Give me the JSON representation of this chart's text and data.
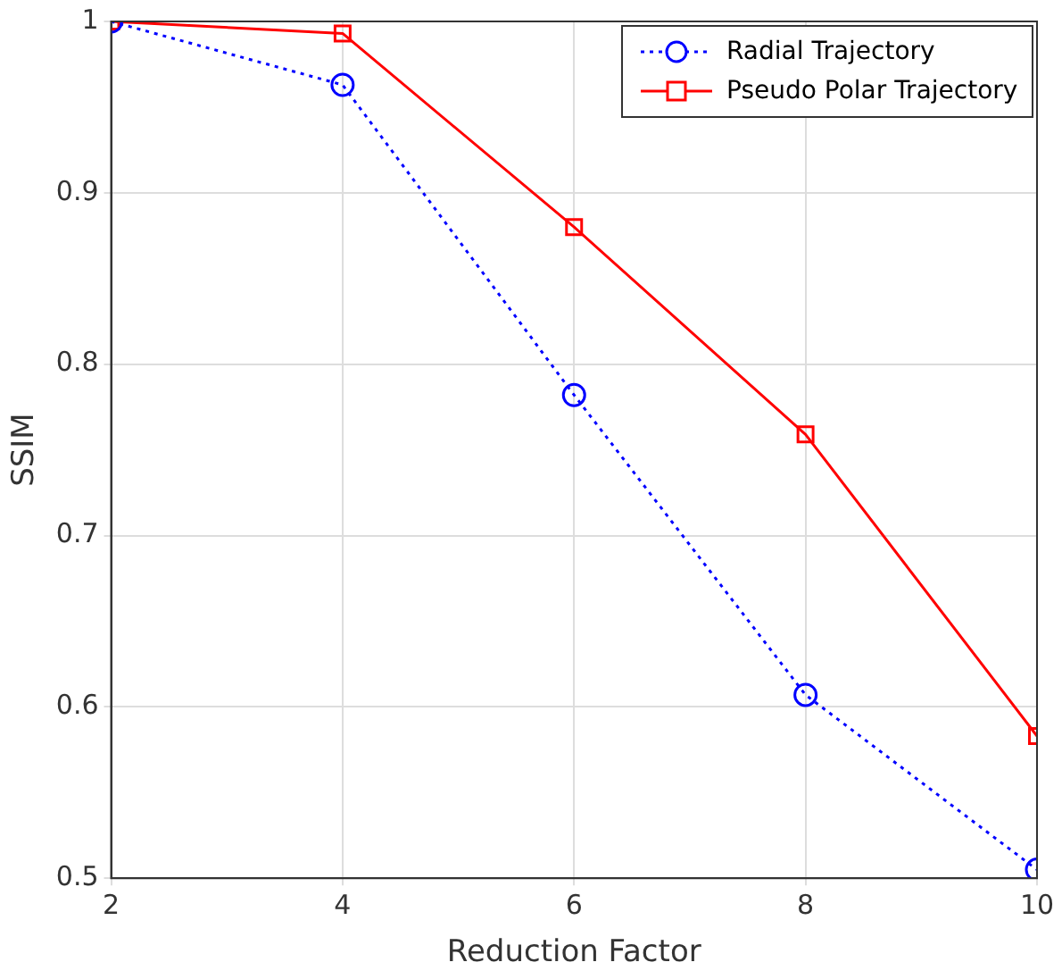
{
  "chart_data": {
    "type": "line",
    "xlabel": "Reduction Factor",
    "ylabel": "SSIM",
    "x": [
      2,
      4,
      6,
      8,
      10
    ],
    "series": [
      {
        "name": "Radial Trajectory",
        "color": "#0000ff",
        "values": [
          1.0,
          0.963,
          0.782,
          0.607,
          0.505
        ],
        "marker": "circle",
        "line_style": "dotted"
      },
      {
        "name": "Pseudo Polar Trajectory",
        "color": "#ff0000",
        "values": [
          1.0,
          0.993,
          0.88,
          0.759,
          0.583
        ],
        "marker": "square",
        "line_style": "solid"
      }
    ],
    "xlim": [
      2,
      10
    ],
    "xticks": [
      2,
      4,
      6,
      8,
      10
    ],
    "ylim": [
      0.5,
      1
    ],
    "yticks": [
      0.5,
      0.6,
      0.7,
      0.8,
      0.9,
      1
    ],
    "grid": true,
    "legend": "top right"
  }
}
